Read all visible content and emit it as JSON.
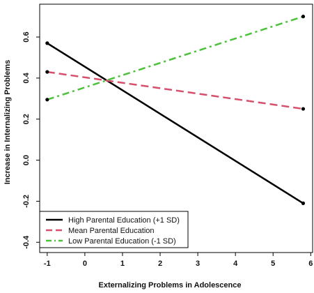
{
  "chart_data": {
    "type": "line",
    "title": "",
    "xlabel": "Externalizing Problems in Adolescence",
    "ylabel": "Increase in Internalizing Problems",
    "xlim": [
      -1.2,
      6.05
    ],
    "ylim": [
      -0.45,
      0.76
    ],
    "x_ticks": [
      -1,
      0,
      1,
      2,
      3,
      4,
      5,
      6
    ],
    "y_ticks": [
      -0.4,
      -0.2,
      0.0,
      0.2,
      0.4,
      0.6
    ],
    "x_tick_labels": [
      "-1",
      "0",
      "1",
      "2",
      "3",
      "4",
      "5",
      "6"
    ],
    "y_tick_labels": [
      "-0.4",
      "-0.2",
      "0.0",
      "0.2",
      "0.4",
      "0.6"
    ],
    "grid": false,
    "legend_position": "bottom-left",
    "series": [
      {
        "name": "High Parental Education (+1 SD)",
        "x": [
          -1,
          5.8
        ],
        "y": [
          0.57,
          -0.21
        ],
        "color": "#000000",
        "dash": "solid"
      },
      {
        "name": "Mean Parental Education",
        "x": [
          -1,
          5.8
        ],
        "y": [
          0.43,
          0.25
        ],
        "color": "#d6506e",
        "dash": "dashed"
      },
      {
        "name": "Low Parental Education (-1 SD)",
        "x": [
          -1,
          5.8
        ],
        "y": [
          0.295,
          0.7
        ],
        "color": "#4cc23b",
        "dash": "dashdot"
      }
    ]
  }
}
